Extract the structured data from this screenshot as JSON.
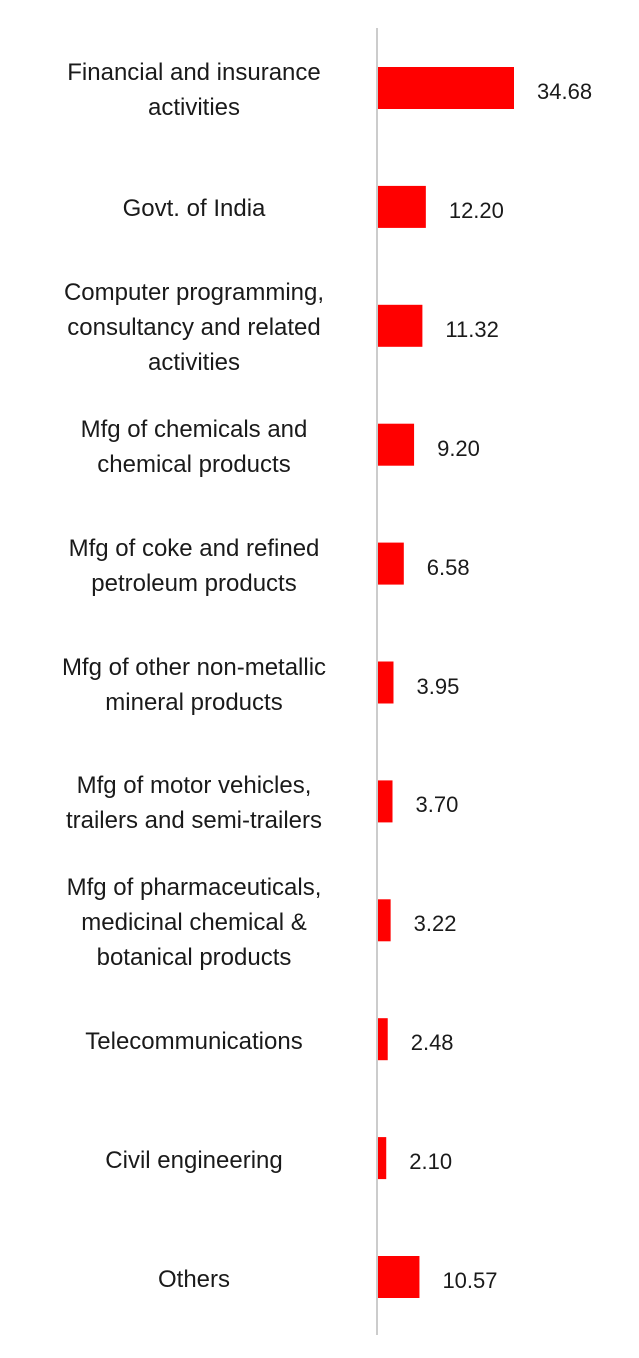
{
  "chart_data": {
    "type": "bar",
    "orientation": "horizontal",
    "categories": [
      "Financial and insurance\nactivities",
      "Govt. of India",
      "Computer programming,\nconsultancy and related\nactivities",
      "Mfg of chemicals and\nchemical products",
      "Mfg of coke and refined\npetroleum products",
      "Mfg of other non-metallic\nmineral products",
      "Mfg of motor vehicles,\ntrailers and semi-trailers",
      "Mfg of pharmaceuticals,\nmedicinal chemical &\nbotanical products",
      "Telecommunications",
      "Civil engineering",
      "Others"
    ],
    "values": [
      34.68,
      12.2,
      11.32,
      9.2,
      6.58,
      3.95,
      3.7,
      3.22,
      2.48,
      2.1,
      10.57
    ],
    "value_labels": [
      "34.68",
      "12.20",
      "11.32",
      "9.20",
      "6.58",
      "3.95",
      "3.70",
      "3.22",
      "2.48",
      "2.10",
      "10.57"
    ],
    "title": "",
    "xlabel": "",
    "ylabel": "",
    "xlim": [
      0,
      34.68
    ],
    "grid": false,
    "legend": "none",
    "bar_color": "#ff0000",
    "axis_color": "#cccccc"
  }
}
